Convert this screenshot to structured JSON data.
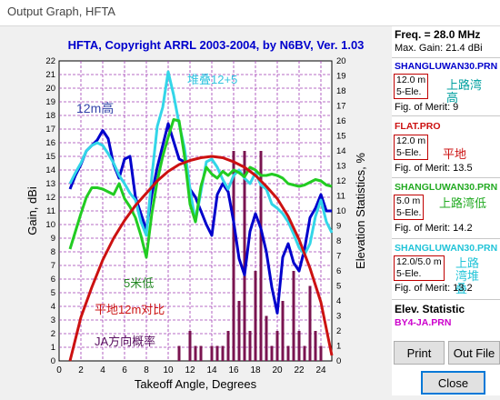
{
  "window": {
    "title": "Output Graph, HFTA"
  },
  "chart_title": "HFTA, Copyright ARRL 2003-2004, by N6BV, Ver. 1.03",
  "colors": {
    "title": "#0000cc",
    "grid": "#a03cb4",
    "blue": "#0000cc",
    "cyan": "#33d6e8",
    "green": "#22cc22",
    "red": "#cc1111",
    "bars": "#7a1450"
  },
  "annotations": {
    "a1": "堆叠12+5",
    "a2": "12m高",
    "a3": "5米低",
    "a4": "平地12m对比",
    "a5": "JA方向概率"
  },
  "sidebar": {
    "freq": "Freq. = 28.0 MHz",
    "max_gain": "Max. Gain: 21.4 dBi",
    "antennas": [
      {
        "file": "SHANGLUWAN30.PRN",
        "height": "12.0 m",
        "type": "5-Ele.",
        "merit": "Fig. of Merit: 9",
        "note": "上路湾高"
      },
      {
        "file": "FLAT.PRO",
        "height": "12.0 m",
        "type": "5-Ele.",
        "merit": "Fig. of Merit: 13.5",
        "note": "平地"
      },
      {
        "file": "SHANGLUWAN30.PRN",
        "height": "5.0 m",
        "type": "5-Ele.",
        "merit": "Fig. of Merit: 14.2",
        "note": "上路湾低"
      },
      {
        "file": "SHANGLUWAN30.PRN",
        "height": "12.0/5.0 m",
        "type": "5-Ele.",
        "merit": "Fig. of Merit: 13.2",
        "note": "上路湾堆叠"
      }
    ],
    "elev_label": "Elev. Statistic",
    "elev_file": "BY4-JA.PRN",
    "print_label": "Print",
    "outfile_label": "Out File",
    "close_label": "Close"
  },
  "chart_data": {
    "type": "line",
    "title": "HFTA, Copyright ARRL 2003-2004, by N6BV, Ver. 1.03",
    "xlabel": "Takeoff Angle, Degrees",
    "ylabel": "Gain, dBi",
    "y2label": "Elevation Statistics, %",
    "xlim": [
      0,
      25
    ],
    "ylim": [
      0,
      22
    ],
    "y2lim": [
      0,
      20
    ],
    "x_ticks": [
      0,
      2,
      4,
      6,
      8,
      10,
      12,
      14,
      16,
      18,
      20,
      22,
      24
    ],
    "y_ticks": [
      0,
      1,
      2,
      3,
      4,
      5,
      6,
      7,
      8,
      9,
      10,
      11,
      12,
      13,
      14,
      15,
      16,
      17,
      18,
      19,
      20,
      21,
      22
    ],
    "y2_ticks": [
      0,
      1,
      2,
      3,
      4,
      5,
      6,
      7,
      8,
      9,
      10,
      11,
      12,
      13,
      14,
      15,
      16,
      17,
      18,
      19,
      20
    ],
    "grid": true,
    "series": [
      {
        "color": "#0000cc",
        "x": [
          1,
          1.5,
          2,
          2.5,
          3,
          3.5,
          4,
          4.5,
          5,
          5.5,
          6,
          6.5,
          7,
          7.5,
          8,
          8.5,
          9,
          9.5,
          10,
          10.5,
          11,
          11.5,
          12,
          12.5,
          13,
          13.5,
          14,
          14.5,
          15,
          15.5,
          16,
          16.5,
          17,
          17.5,
          18,
          18.5,
          19,
          19.5,
          20,
          20.5,
          21,
          21.5,
          22,
          22.5,
          23,
          23.5,
          24,
          24.5,
          25
        ],
        "y": [
          12.6,
          13.6,
          14.4,
          15.4,
          15.8,
          16.2,
          16.9,
          16.3,
          14.4,
          13.4,
          14.8,
          15.0,
          12.0,
          10.8,
          9.6,
          12.2,
          14.2,
          15.8,
          17.4,
          16.1,
          14.8,
          14.6,
          12.6,
          12.0,
          11.0,
          10.0,
          9.2,
          12.2,
          13.0,
          12.4,
          10.2,
          7.5,
          6.3,
          9.5,
          10.8,
          9.7,
          8.0,
          5.4,
          3.5,
          7.6,
          8.6,
          7.2,
          6.6,
          8.2,
          10.5,
          11.2,
          12.2,
          11.0,
          11.0
        ]
      },
      {
        "color": "#33d6e8",
        "x": [
          1,
          1.5,
          2,
          2.5,
          3,
          3.5,
          4,
          4.5,
          5,
          5.5,
          6,
          6.5,
          7,
          7.5,
          8,
          8.5,
          9,
          9.5,
          10,
          10.5,
          11,
          11.5,
          12,
          12.5,
          13,
          13.5,
          14,
          14.5,
          15,
          15.5,
          16,
          16.5,
          17,
          17.5,
          18,
          18.5,
          19,
          19.5,
          20,
          20.5,
          21,
          21.5,
          22,
          22.5,
          23,
          23.5,
          24,
          24.5,
          25
        ],
        "y": [
          13.0,
          13.8,
          14.5,
          15.4,
          15.8,
          16.0,
          15.8,
          15.2,
          14.5,
          13.6,
          13.0,
          12.3,
          11.8,
          10.2,
          9.2,
          13.5,
          17.2,
          18.6,
          21.2,
          19.5,
          17.4,
          15.6,
          12.6,
          10.2,
          12.4,
          14.6,
          14.8,
          14.2,
          13.3,
          12.6,
          13.6,
          14.0,
          13.4,
          13.0,
          13.8,
          12.9,
          12.6,
          11.5,
          11.2,
          10.8,
          10.2,
          9.3,
          8.3,
          7.8,
          8.6,
          10.6,
          11.8,
          10.2,
          9.4
        ]
      },
      {
        "color": "#22cc22",
        "x": [
          1,
          1.5,
          2,
          2.5,
          3,
          3.5,
          4,
          4.5,
          5,
          5.5,
          6,
          6.5,
          7,
          7.5,
          8,
          8.5,
          9,
          9.5,
          10,
          10.5,
          11,
          11.5,
          12,
          12.5,
          13,
          13.5,
          14,
          14.5,
          15,
          15.5,
          16,
          16.5,
          17,
          17.5,
          18,
          18.5,
          19,
          19.5,
          20,
          20.5,
          21,
          21.5,
          22,
          22.5,
          23,
          23.5,
          24,
          24.5,
          25
        ],
        "y": [
          8.2,
          9.5,
          10.8,
          12.0,
          12.7,
          12.7,
          12.6,
          12.4,
          12.2,
          13.0,
          11.9,
          11.3,
          10.5,
          9.2,
          7.6,
          10.8,
          13.2,
          15.0,
          16.4,
          17.7,
          17.6,
          15.0,
          11.5,
          10.2,
          12.8,
          14.2,
          13.7,
          13.4,
          13.9,
          13.6,
          14.0,
          13.8,
          13.5,
          14.2,
          14.0,
          13.6,
          13.6,
          13.7,
          13.6,
          13.4,
          13.0,
          12.9,
          12.8,
          12.9,
          13.1,
          13.3,
          13.2,
          12.9,
          12.8
        ]
      },
      {
        "color": "#cc1111",
        "x": [
          1,
          2,
          3,
          4,
          5,
          6,
          7,
          8,
          9,
          10,
          11,
          12,
          13,
          14,
          15,
          16,
          17,
          18,
          19,
          20,
          21,
          22,
          23,
          24,
          25
        ],
        "y": [
          0.0,
          3.2,
          5.4,
          7.4,
          9.0,
          10.3,
          11.4,
          12.3,
          13.2,
          13.9,
          14.4,
          14.7,
          14.9,
          15.0,
          14.9,
          14.6,
          14.2,
          13.6,
          12.8,
          11.9,
          10.6,
          8.9,
          6.8,
          4.3,
          0.4
        ]
      },
      {
        "type": "bar",
        "color": "#7a1450",
        "x": [
          11,
          12,
          12.5,
          13,
          14,
          14.5,
          15,
          15.5,
          16,
          16.5,
          17,
          17.5,
          18,
          18.5,
          19,
          19.5,
          20,
          20.5,
          21,
          21.5,
          22,
          22.5,
          23,
          23.5,
          24
        ],
        "y2": [
          1,
          2,
          1,
          1,
          1,
          1,
          1,
          2,
          14,
          4,
          14,
          2,
          6,
          14,
          3,
          1,
          2,
          4,
          1,
          6,
          2,
          1,
          5,
          2,
          1
        ]
      }
    ]
  }
}
